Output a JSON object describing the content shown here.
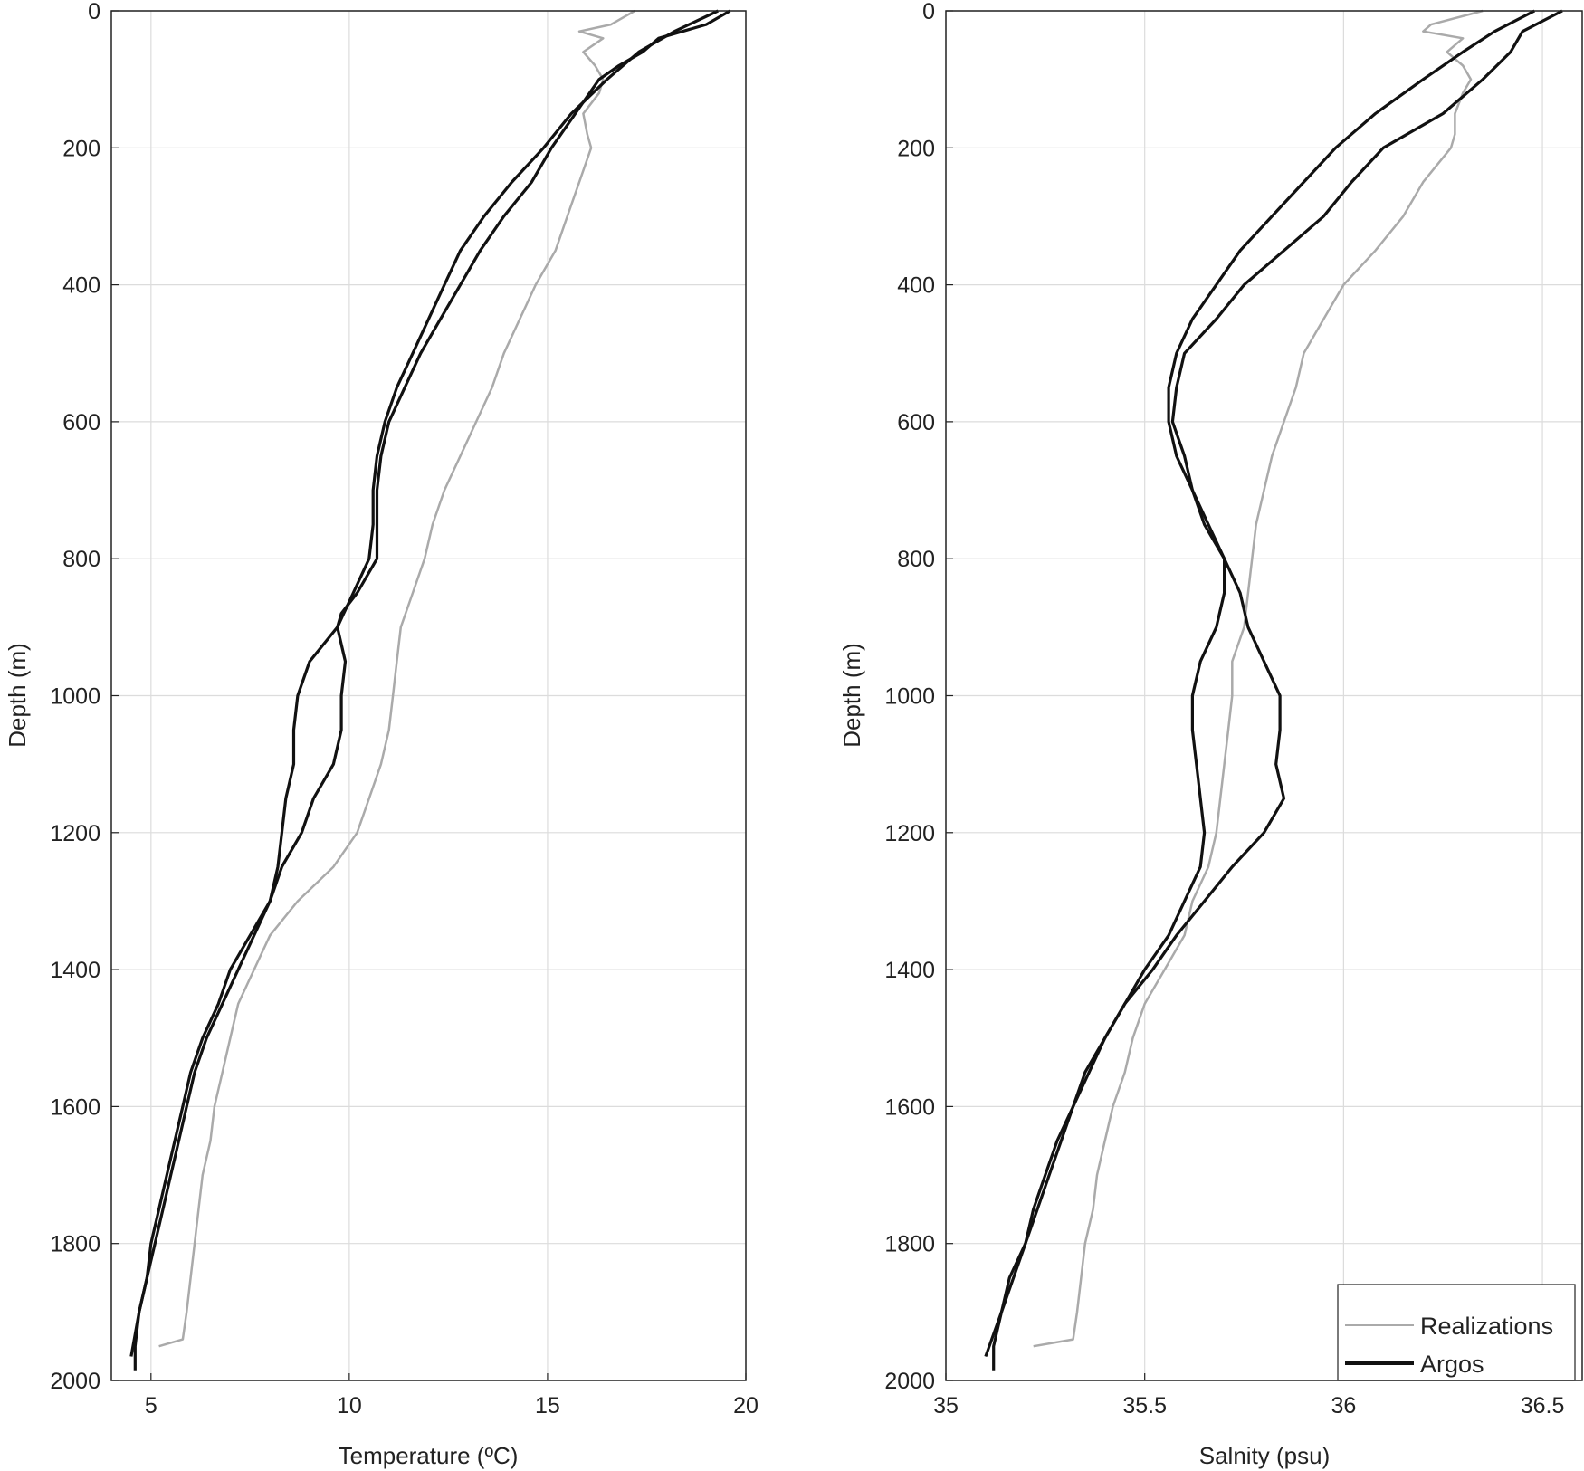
{
  "chart_data": [
    {
      "type": "line",
      "xlabel": "Temperature (ºC)",
      "ylabel": "Depth (m)",
      "xlim": [
        4,
        20
      ],
      "ylim": [
        2000,
        0
      ],
      "y_reversed": true,
      "grid": true,
      "xticks": [
        5,
        10,
        15,
        20
      ],
      "yticks": [
        0,
        200,
        400,
        600,
        800,
        1000,
        1200,
        1400,
        1600,
        1800,
        2000
      ],
      "colors": {
        "realizations": "#aaaaaa",
        "argos": "#111111"
      },
      "series": [
        {
          "name": "Realizations",
          "depth": [
            0,
            20,
            30,
            40,
            60,
            80,
            100,
            120,
            150,
            180,
            200,
            250,
            300,
            350,
            400,
            450,
            500,
            550,
            600,
            650,
            700,
            750,
            800,
            850,
            900,
            950,
            1000,
            1050,
            1100,
            1150,
            1200,
            1250,
            1300,
            1350,
            1400,
            1450,
            1500,
            1550,
            1600,
            1650,
            1700,
            1750,
            1800,
            1850,
            1900,
            1940,
            1950
          ],
          "values": [
            17.2,
            16.6,
            15.8,
            16.4,
            15.9,
            16.2,
            16.4,
            16.3,
            15.9,
            16.0,
            16.1,
            15.8,
            15.5,
            15.2,
            14.7,
            14.3,
            13.9,
            13.6,
            13.2,
            12.8,
            12.4,
            12.1,
            11.9,
            11.6,
            11.3,
            11.2,
            11.1,
            11.0,
            10.8,
            10.5,
            10.2,
            9.6,
            8.7,
            8.0,
            7.6,
            7.2,
            7.0,
            6.8,
            6.6,
            6.5,
            6.3,
            6.2,
            6.1,
            6.0,
            5.9,
            5.8,
            5.2
          ]
        },
        {
          "name": "Argos",
          "depth": [
            0,
            20,
            40,
            60,
            80,
            100,
            150,
            200,
            250,
            300,
            350,
            400,
            450,
            500,
            550,
            600,
            650,
            700,
            750,
            800,
            850,
            880,
            900,
            950,
            1000,
            1050,
            1100,
            1150,
            1200,
            1250,
            1300,
            1350,
            1400,
            1450,
            1500,
            1550,
            1600,
            1650,
            1700,
            1750,
            1800,
            1850,
            1900,
            1950,
            1985
          ],
          "values": [
            19.6,
            19.0,
            17.8,
            17.4,
            16.8,
            16.3,
            15.7,
            15.1,
            14.6,
            13.9,
            13.3,
            12.8,
            12.3,
            11.8,
            11.4,
            11.0,
            10.8,
            10.7,
            10.7,
            10.7,
            10.2,
            9.8,
            9.7,
            9.9,
            9.8,
            9.8,
            9.6,
            9.1,
            8.8,
            8.3,
            8.0,
            7.5,
            7.0,
            6.7,
            6.3,
            6.0,
            5.8,
            5.6,
            5.4,
            5.2,
            5.0,
            4.9,
            4.7,
            4.6,
            4.6
          ]
        },
        {
          "name": "Argos",
          "depth": [
            0,
            30,
            60,
            100,
            150,
            200,
            250,
            300,
            350,
            400,
            450,
            500,
            550,
            600,
            650,
            700,
            750,
            800,
            850,
            900,
            950,
            1000,
            1050,
            1100,
            1150,
            1200,
            1250,
            1300,
            1350,
            1400,
            1450,
            1500,
            1550,
            1600,
            1650,
            1700,
            1750,
            1800,
            1850,
            1900,
            1965
          ],
          "values": [
            19.3,
            18.2,
            17.3,
            16.5,
            15.6,
            14.9,
            14.1,
            13.4,
            12.8,
            12.4,
            12.0,
            11.6,
            11.2,
            10.9,
            10.7,
            10.6,
            10.6,
            10.5,
            10.1,
            9.7,
            9.0,
            8.7,
            8.6,
            8.6,
            8.4,
            8.3,
            8.2,
            8.0,
            7.6,
            7.2,
            6.8,
            6.4,
            6.1,
            5.9,
            5.7,
            5.5,
            5.3,
            5.1,
            4.9,
            4.7,
            4.5
          ]
        }
      ]
    },
    {
      "type": "line",
      "xlabel": "Salnity (psu)",
      "ylabel": "Depth (m)",
      "xlim": [
        35,
        36.6
      ],
      "ylim": [
        2000,
        0
      ],
      "y_reversed": true,
      "grid": true,
      "xticks": [
        35,
        35.5,
        36,
        36.5
      ],
      "yticks": [
        0,
        200,
        400,
        600,
        800,
        1000,
        1200,
        1400,
        1600,
        1800,
        2000
      ],
      "legend": {
        "position": "bottom-right",
        "entries": [
          "Realizations",
          "Argos"
        ]
      },
      "series": [
        {
          "name": "Realizations",
          "depth": [
            0,
            20,
            30,
            40,
            60,
            80,
            100,
            120,
            150,
            180,
            200,
            250,
            300,
            350,
            400,
            450,
            500,
            550,
            600,
            650,
            700,
            750,
            800,
            850,
            900,
            950,
            1000,
            1050,
            1100,
            1150,
            1200,
            1250,
            1300,
            1350,
            1400,
            1450,
            1500,
            1550,
            1600,
            1650,
            1700,
            1750,
            1800,
            1850,
            1900,
            1940,
            1950
          ],
          "values": [
            36.35,
            36.22,
            36.2,
            36.3,
            36.26,
            36.3,
            36.32,
            36.3,
            36.28,
            36.28,
            36.27,
            36.2,
            36.15,
            36.08,
            36.0,
            35.95,
            35.9,
            35.88,
            35.85,
            35.82,
            35.8,
            35.78,
            35.77,
            35.76,
            35.75,
            35.72,
            35.72,
            35.71,
            35.7,
            35.69,
            35.68,
            35.66,
            35.62,
            35.6,
            35.55,
            35.5,
            35.47,
            35.45,
            35.42,
            35.4,
            35.38,
            35.37,
            35.35,
            35.34,
            35.33,
            35.32,
            35.22
          ]
        },
        {
          "name": "Argos",
          "depth": [
            0,
            30,
            60,
            100,
            150,
            200,
            250,
            300,
            350,
            400,
            450,
            500,
            550,
            600,
            650,
            700,
            750,
            800,
            850,
            900,
            950,
            1000,
            1050,
            1100,
            1150,
            1200,
            1250,
            1300,
            1350,
            1400,
            1450,
            1500,
            1550,
            1600,
            1650,
            1700,
            1750,
            1800,
            1850,
            1900,
            1950,
            1985
          ],
          "values": [
            36.55,
            36.45,
            36.42,
            36.35,
            36.25,
            36.1,
            36.02,
            35.95,
            35.85,
            35.75,
            35.68,
            35.6,
            35.58,
            35.57,
            35.6,
            35.62,
            35.65,
            35.7,
            35.74,
            35.76,
            35.8,
            35.84,
            35.84,
            35.83,
            35.85,
            35.8,
            35.72,
            35.65,
            35.58,
            35.52,
            35.45,
            35.4,
            35.35,
            35.32,
            35.28,
            35.25,
            35.22,
            35.2,
            35.16,
            35.14,
            35.12,
            35.12
          ]
        },
        {
          "name": "Argos",
          "depth": [
            0,
            30,
            60,
            100,
            150,
            200,
            250,
            300,
            350,
            400,
            450,
            500,
            550,
            600,
            650,
            700,
            750,
            800,
            850,
            900,
            950,
            1000,
            1050,
            1100,
            1150,
            1200,
            1250,
            1300,
            1350,
            1400,
            1450,
            1500,
            1550,
            1600,
            1650,
            1700,
            1750,
            1800,
            1850,
            1900,
            1965
          ],
          "values": [
            36.48,
            36.38,
            36.3,
            36.2,
            36.08,
            35.98,
            35.9,
            35.82,
            35.74,
            35.68,
            35.62,
            35.58,
            35.56,
            35.56,
            35.58,
            35.62,
            35.66,
            35.7,
            35.7,
            35.68,
            35.64,
            35.62,
            35.62,
            35.63,
            35.64,
            35.65,
            35.64,
            35.6,
            35.56,
            35.5,
            35.45,
            35.4,
            35.36,
            35.32,
            35.29,
            35.26,
            35.23,
            35.2,
            35.17,
            35.14,
            35.1
          ]
        }
      ]
    }
  ]
}
